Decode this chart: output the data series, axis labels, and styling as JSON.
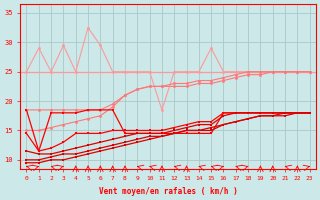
{
  "x": [
    0,
    1,
    2,
    3,
    4,
    5,
    6,
    7,
    8,
    9,
    10,
    11,
    12,
    13,
    14,
    15,
    16,
    17,
    18,
    19,
    20,
    21,
    22,
    23
  ],
  "line_horizontal_pink": 25.0,
  "line_pink_jagged": [
    25.0,
    29.0,
    25.0,
    29.5,
    25.0,
    32.5,
    29.5,
    25.0,
    25.0,
    25.0,
    25.0,
    18.5,
    25.0,
    25.0,
    25.0,
    29.0,
    25.0,
    25.0,
    25.0,
    25.0,
    25.0,
    25.0,
    25.0,
    25.0
  ],
  "line_pink_ramp1": [
    18.5,
    18.5,
    18.5,
    18.5,
    18.5,
    18.5,
    18.5,
    19.5,
    21.0,
    22.0,
    22.5,
    22.5,
    22.5,
    22.5,
    23.0,
    23.0,
    23.5,
    24.0,
    24.5,
    24.5,
    25.0,
    25.0,
    25.0,
    25.0
  ],
  "line_pink_ramp2": [
    15.0,
    15.0,
    15.5,
    16.0,
    16.5,
    17.0,
    17.5,
    19.0,
    21.0,
    22.0,
    22.5,
    22.5,
    23.0,
    23.0,
    23.5,
    23.5,
    24.0,
    24.5,
    25.0,
    25.0,
    25.0,
    25.0,
    25.0,
    25.0
  ],
  "line_red_flat": [
    18.5,
    11.5,
    18.0,
    18.0,
    18.0,
    18.5,
    18.5,
    18.5,
    14.5,
    14.5,
    14.5,
    14.5,
    14.5,
    14.5,
    14.5,
    14.5,
    18.0,
    18.0,
    18.0,
    18.0,
    18.0,
    18.0,
    18.0,
    18.0
  ],
  "line_red_ramp1": [
    14.5,
    11.5,
    12.0,
    13.0,
    14.5,
    14.5,
    14.5,
    15.0,
    15.0,
    15.0,
    15.0,
    15.0,
    15.5,
    16.0,
    16.5,
    16.5,
    18.0,
    18.0,
    18.0,
    18.0,
    18.0,
    18.0,
    18.0,
    18.0
  ],
  "line_red_ramp2": [
    11.5,
    11.0,
    11.0,
    11.5,
    12.0,
    12.5,
    13.0,
    13.5,
    14.0,
    14.5,
    14.5,
    14.5,
    15.0,
    15.5,
    16.0,
    16.0,
    17.5,
    18.0,
    18.0,
    18.0,
    18.0,
    18.0,
    18.0,
    18.0
  ],
  "line_red_ramp3": [
    10.0,
    10.0,
    10.5,
    11.0,
    11.0,
    11.5,
    12.0,
    12.5,
    13.0,
    13.5,
    14.0,
    14.0,
    14.5,
    15.0,
    15.0,
    15.0,
    16.0,
    16.5,
    17.0,
    17.5,
    17.5,
    17.5,
    18.0,
    18.0
  ],
  "line_red_ramp4": [
    9.5,
    9.5,
    10.0,
    10.0,
    10.5,
    11.0,
    11.5,
    12.0,
    12.5,
    13.0,
    13.5,
    14.0,
    14.5,
    15.0,
    15.0,
    15.5,
    16.0,
    16.5,
    17.0,
    17.5,
    17.5,
    18.0,
    18.0,
    18.0
  ],
  "bg_color": "#cce8e8",
  "grid_color": "#aac8c8",
  "line_color_pink_light": "#ff9999",
  "line_color_pink_mid": "#ff7777",
  "line_color_red": "#ff0000",
  "line_color_dark_red": "#dd0000",
  "xlabel": "Vent moyen/en rafales ( km/h )",
  "ylim": [
    8.5,
    36.5
  ],
  "xlim": [
    -0.5,
    23.5
  ],
  "yticks": [
    10,
    15,
    20,
    25,
    30,
    35
  ],
  "xticks": [
    0,
    1,
    2,
    3,
    4,
    5,
    6,
    7,
    8,
    9,
    10,
    11,
    12,
    13,
    14,
    15,
    16,
    17,
    18,
    19,
    20,
    21,
    22,
    23
  ]
}
